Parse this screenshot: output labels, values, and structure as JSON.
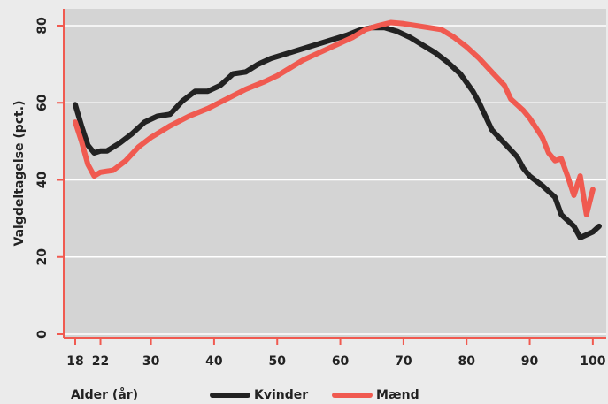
{
  "chart_data": {
    "type": "line",
    "xlabel": "Alder (år)",
    "ylabel": "Valgdeltagelse (pct.)",
    "xlim": [
      18,
      101
    ],
    "ylim": [
      0,
      80
    ],
    "x_ticks": [
      18,
      22,
      30,
      40,
      50,
      60,
      70,
      80,
      90,
      100
    ],
    "y_ticks": [
      0,
      20,
      40,
      60,
      80
    ],
    "grid": "horizontal",
    "legend_position": "bottom",
    "colors": {
      "background": "#ebebeb",
      "plot_bg": "#d4d4d4",
      "grid": "#ffffff",
      "axis": "#f05a50"
    },
    "series": [
      {
        "name": "Kvinder",
        "color": "#222222",
        "points": [
          [
            18,
            59.5
          ],
          [
            19,
            54
          ],
          [
            20,
            49
          ],
          [
            21,
            47
          ],
          [
            22,
            47.5
          ],
          [
            23,
            47.5
          ],
          [
            25,
            49.5
          ],
          [
            27,
            52
          ],
          [
            29,
            55
          ],
          [
            31,
            56.5
          ],
          [
            33,
            57
          ],
          [
            35,
            60.5
          ],
          [
            37,
            63
          ],
          [
            39,
            63
          ],
          [
            41,
            64.5
          ],
          [
            43,
            67.5
          ],
          [
            45,
            68
          ],
          [
            47,
            70
          ],
          [
            49,
            71.5
          ],
          [
            51,
            72.5
          ],
          [
            53,
            73.5
          ],
          [
            55,
            74.5
          ],
          [
            57,
            75.5
          ],
          [
            59,
            76.5
          ],
          [
            61,
            77.5
          ],
          [
            63,
            78.8
          ],
          [
            65,
            79.5
          ],
          [
            67,
            79.5
          ],
          [
            69,
            78.5
          ],
          [
            71,
            77
          ],
          [
            73,
            75
          ],
          [
            75,
            73
          ],
          [
            77,
            70.5
          ],
          [
            79,
            67.5
          ],
          [
            81,
            63
          ],
          [
            82,
            60
          ],
          [
            83,
            56.5
          ],
          [
            84,
            53
          ],
          [
            86,
            49.5
          ],
          [
            88,
            46
          ],
          [
            89,
            43
          ],
          [
            90,
            41
          ],
          [
            92,
            38.5
          ],
          [
            94,
            35.5
          ],
          [
            95,
            31
          ],
          [
            96,
            29.5
          ],
          [
            97,
            28
          ],
          [
            98,
            25
          ],
          [
            100,
            26.5
          ],
          [
            101,
            28
          ]
        ]
      },
      {
        "name": "Mænd",
        "color": "#f05a50",
        "points": [
          [
            18,
            55
          ],
          [
            19,
            50
          ],
          [
            20,
            44
          ],
          [
            21,
            41
          ],
          [
            22,
            42
          ],
          [
            24,
            42.5
          ],
          [
            26,
            45
          ],
          [
            28,
            48.5
          ],
          [
            30,
            51
          ],
          [
            33,
            54
          ],
          [
            36,
            56.5
          ],
          [
            39,
            58.5
          ],
          [
            42,
            61
          ],
          [
            45,
            63.5
          ],
          [
            48,
            65.5
          ],
          [
            50,
            67
          ],
          [
            52,
            69
          ],
          [
            54,
            71
          ],
          [
            56,
            72.5
          ],
          [
            58,
            74
          ],
          [
            60,
            75.5
          ],
          [
            62,
            77
          ],
          [
            64,
            79
          ],
          [
            66,
            80
          ],
          [
            68,
            80.8
          ],
          [
            70,
            80.5
          ],
          [
            72,
            80
          ],
          [
            74,
            79.5
          ],
          [
            76,
            79
          ],
          [
            78,
            77
          ],
          [
            80,
            74.5
          ],
          [
            82,
            71.5
          ],
          [
            84,
            68
          ],
          [
            86,
            64.5
          ],
          [
            87,
            61
          ],
          [
            89,
            58
          ],
          [
            90,
            56
          ],
          [
            92,
            51
          ],
          [
            93,
            47
          ],
          [
            94,
            45
          ],
          [
            95,
            45.5
          ],
          [
            96,
            41
          ],
          [
            97,
            36
          ],
          [
            98,
            41
          ],
          [
            99,
            31
          ],
          [
            100,
            37.5
          ]
        ]
      }
    ]
  }
}
